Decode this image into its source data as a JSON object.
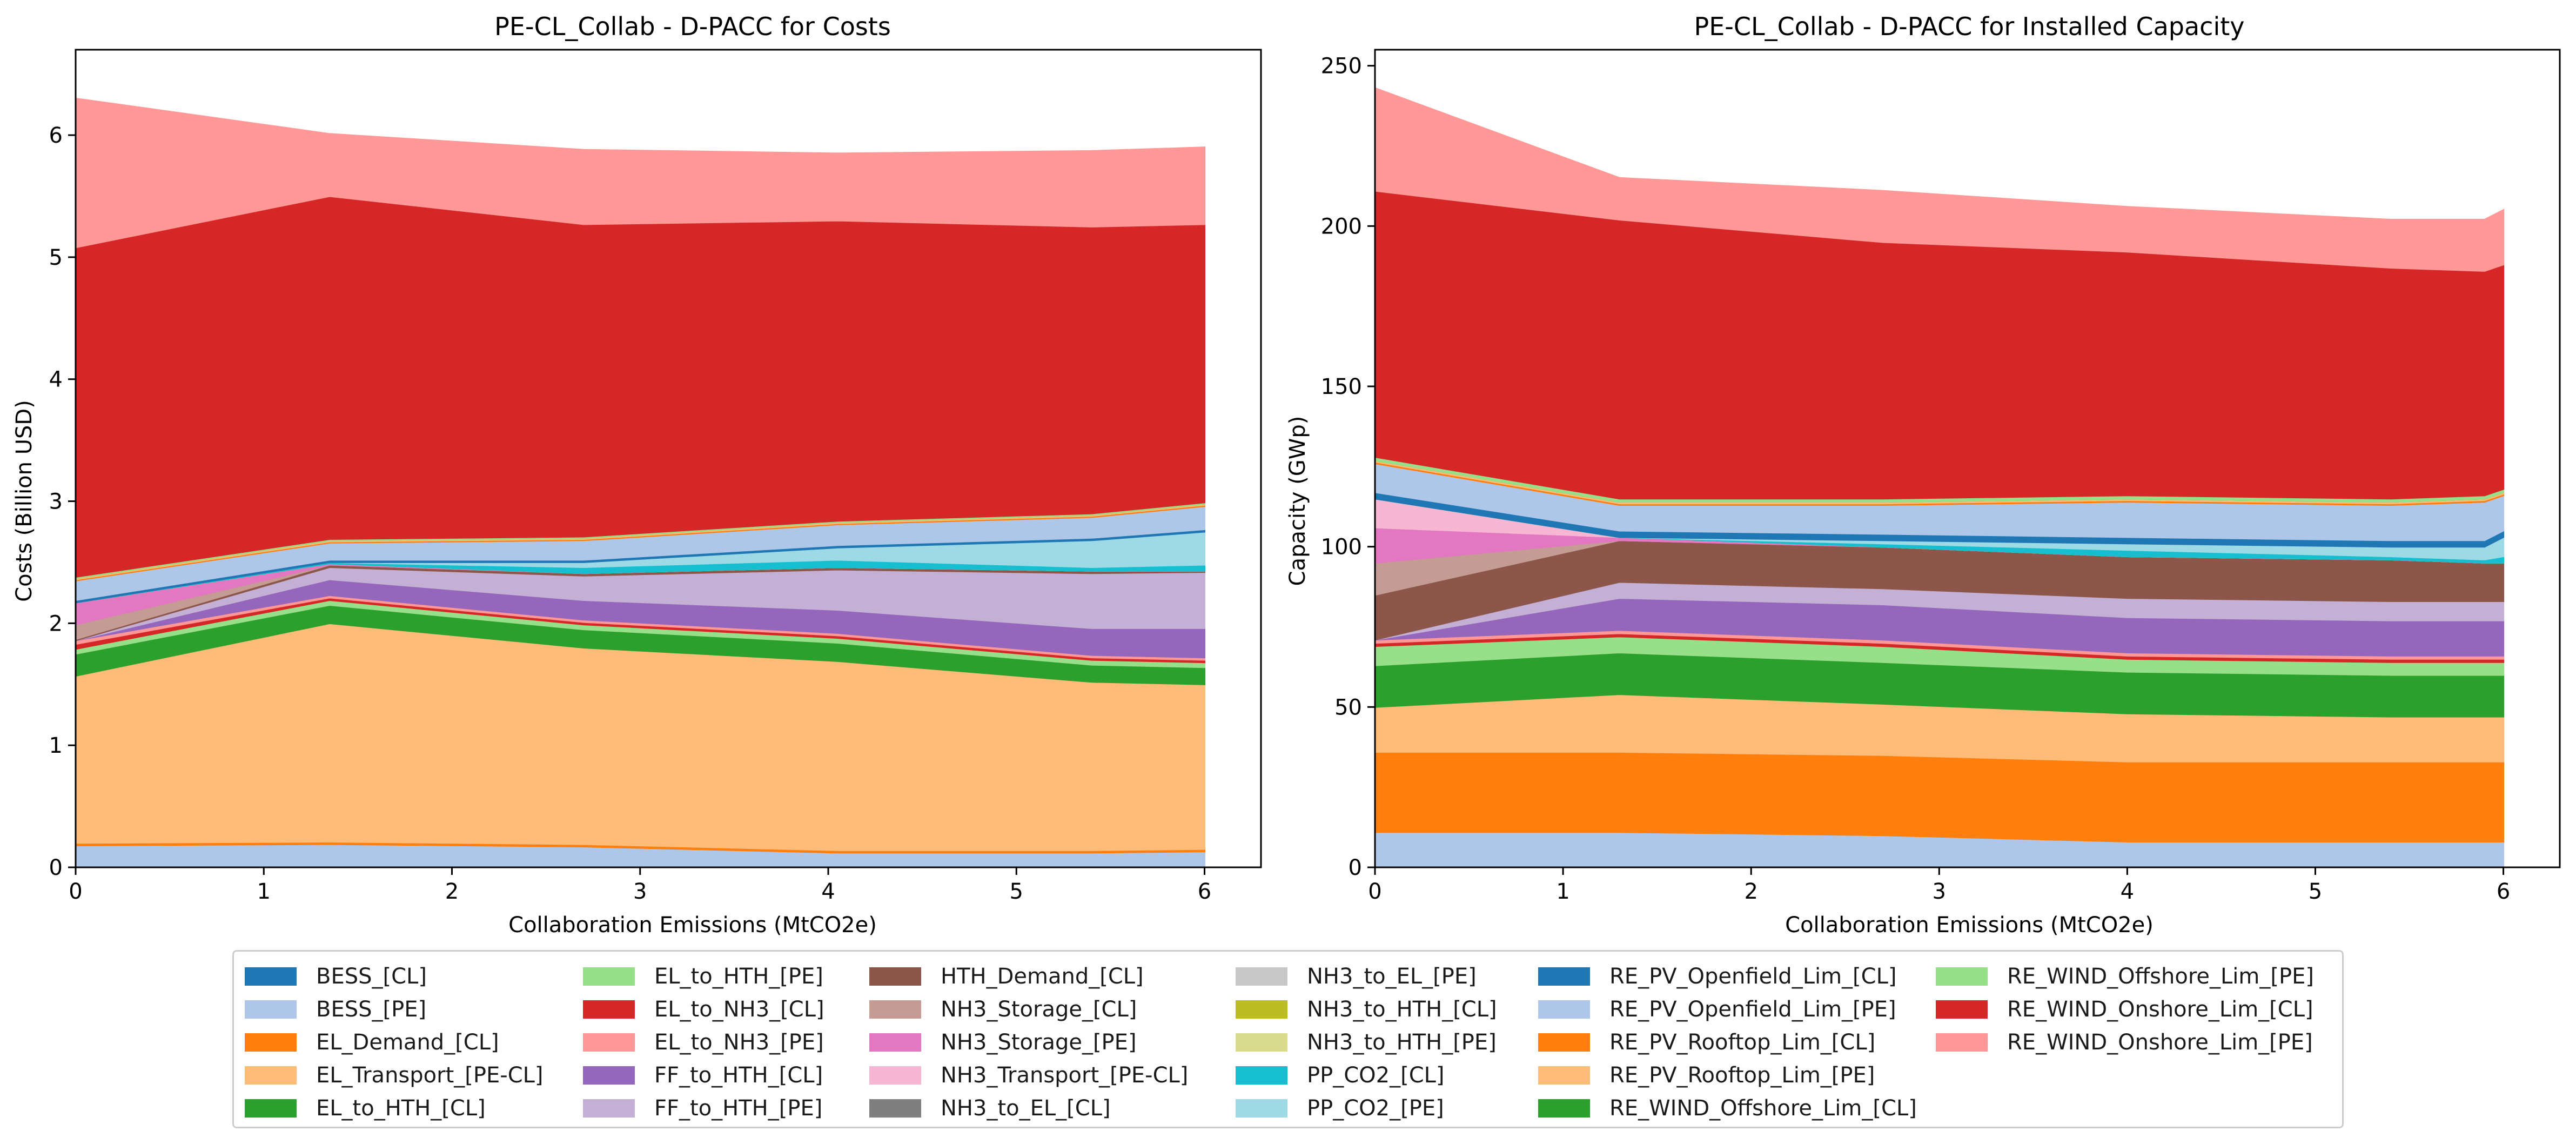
{
  "chart_data": [
    {
      "type": "area",
      "title": "PE-CL_Collab - D-PACC for Costs",
      "xlabel": "Collaboration Emissions (MtCO2e)",
      "ylabel": "Costs (Billion USD)",
      "xlim": [
        0,
        6.3
      ],
      "ylim": [
        0,
        6.7
      ],
      "xticks": [
        0,
        1,
        2,
        3,
        4,
        5,
        6
      ],
      "yticks": [
        0,
        1,
        2,
        3,
        4,
        5,
        6
      ],
      "grid": false,
      "x": [
        0,
        1.35,
        2.7,
        4.05,
        5.4,
        6.0
      ],
      "series": [
        {
          "name": "BESS_[PE]",
          "color": "#aec7e8",
          "values": [
            0.18,
            0.19,
            0.17,
            0.12,
            0.12,
            0.13
          ]
        },
        {
          "name": "EL_Demand_[CL]",
          "color": "#ff7f0e",
          "values": [
            0.02,
            0.02,
            0.02,
            0.02,
            0.02,
            0.02
          ]
        },
        {
          "name": "EL_Transport_[PE-CL]",
          "color": "#ffbb78",
          "values": [
            1.37,
            1.79,
            1.61,
            1.55,
            1.38,
            1.35
          ]
        },
        {
          "name": "EL_to_HTH_[CL]",
          "color": "#2ca02c",
          "values": [
            0.18,
            0.15,
            0.15,
            0.15,
            0.14,
            0.14
          ]
        },
        {
          "name": "EL_to_HTH_[PE]",
          "color": "#98df8a",
          "values": [
            0.04,
            0.04,
            0.04,
            0.04,
            0.04,
            0.04
          ]
        },
        {
          "name": "EL_to_NH3_[CL]",
          "color": "#d62728",
          "values": [
            0.04,
            0.02,
            0.02,
            0.02,
            0.02,
            0.02
          ]
        },
        {
          "name": "EL_to_NH3_[PE]",
          "color": "#ff9896",
          "values": [
            0.03,
            0.02,
            0.02,
            0.02,
            0.02,
            0.02
          ]
        },
        {
          "name": "FF_to_HTH_[CL]",
          "color": "#9467bd",
          "values": [
            0.0,
            0.13,
            0.16,
            0.19,
            0.22,
            0.24
          ]
        },
        {
          "name": "FF_to_HTH_[PE]",
          "color": "#c5b0d5",
          "values": [
            0.0,
            0.1,
            0.2,
            0.33,
            0.45,
            0.46
          ]
        },
        {
          "name": "HTH_Demand_[CL]",
          "color": "#8c564b",
          "values": [
            0.01,
            0.02,
            0.02,
            0.02,
            0.02,
            0.01
          ]
        },
        {
          "name": "NH3_Storage_[CL]",
          "color": "#c49c94",
          "values": [
            0.12,
            0.0,
            0.0,
            0.0,
            0.0,
            0.0
          ]
        },
        {
          "name": "NH3_Storage_[PE]",
          "color": "#e377c2",
          "values": [
            0.18,
            0.01,
            0.0,
            0.0,
            0.0,
            0.0
          ]
        },
        {
          "name": "NH3_Transport_[PE-CL]",
          "color": "#f7b6d2",
          "values": [
            0.0,
            0.0,
            0.0,
            0.0,
            0.0,
            0.0
          ]
        },
        {
          "name": "NH3_to_EL_[CL]",
          "color": "#7f7f7f",
          "values": [
            0.0,
            0.0,
            0.0,
            0.0,
            0.0,
            0.0
          ]
        },
        {
          "name": "NH3_to_EL_[PE]",
          "color": "#c7c7c7",
          "values": [
            0.0,
            0.0,
            0.0,
            0.0,
            0.0,
            0.0
          ]
        },
        {
          "name": "NH3_to_HTH_[CL]",
          "color": "#bcbd22",
          "values": [
            0.0,
            0.0,
            0.0,
            0.0,
            0.0,
            0.0
          ]
        },
        {
          "name": "NH3_to_HTH_[PE]",
          "color": "#dbdb8d",
          "values": [
            0.0,
            0.0,
            0.0,
            0.0,
            0.0,
            0.0
          ]
        },
        {
          "name": "PP_CO2_[CL]",
          "color": "#17becf",
          "values": [
            0.0,
            0.01,
            0.05,
            0.06,
            0.03,
            0.05
          ]
        },
        {
          "name": "PP_CO2_[PE]",
          "color": "#9edae5",
          "values": [
            0.0,
            0.0,
            0.04,
            0.1,
            0.22,
            0.27
          ]
        },
        {
          "name": "RE_PV_Openfield_Lim_[CL]",
          "color": "#1f77b4",
          "values": [
            0.02,
            0.02,
            0.02,
            0.02,
            0.02,
            0.02
          ]
        },
        {
          "name": "RE_PV_Openfield_Lim_[PE]",
          "color": "#aec7e8",
          "values": [
            0.16,
            0.14,
            0.16,
            0.17,
            0.17,
            0.19
          ]
        },
        {
          "name": "RE_PV_Rooftop_Lim_[CL]",
          "color": "#ff7f0e",
          "values": [
            0.01,
            0.01,
            0.01,
            0.01,
            0.01,
            0.01
          ]
        },
        {
          "name": "RE_PV_Rooftop_Lim_[PE]",
          "color": "#ffbb78",
          "values": [
            0.01,
            0.01,
            0.01,
            0.01,
            0.01,
            0.01
          ]
        },
        {
          "name": "RE_WIND_Offshore_Lim_[CL]",
          "color": "#2ca02c",
          "values": [
            0.0,
            0.0,
            0.0,
            0.0,
            0.0,
            0.0
          ]
        },
        {
          "name": "RE_WIND_Offshore_Lim_[PE]",
          "color": "#98df8a",
          "values": [
            0.01,
            0.01,
            0.01,
            0.01,
            0.01,
            0.01
          ]
        },
        {
          "name": "RE_WIND_Onshore_Lim_[CL]",
          "color": "#d62728",
          "values": [
            2.7,
            2.81,
            2.56,
            2.46,
            2.35,
            2.28
          ]
        },
        {
          "name": "RE_WIND_Onshore_Lim_[PE]",
          "color": "#ff9896",
          "values": [
            1.22,
            0.51,
            0.61,
            0.55,
            0.62,
            0.63
          ]
        }
      ]
    },
    {
      "type": "area",
      "title": "PE-CL_Collab - D-PACC for Installed Capacity",
      "xlabel": "Collaboration Emissions (MtCO2e)",
      "ylabel": "Capacity (GWp)",
      "xlim": [
        0,
        6.3
      ],
      "ylim": [
        0,
        255
      ],
      "xticks": [
        0,
        1,
        2,
        3,
        4,
        5,
        6
      ],
      "yticks": [
        0,
        50,
        100,
        150,
        200,
        250
      ],
      "grid": false,
      "x": [
        0,
        1.3,
        2.7,
        4.0,
        5.4,
        5.9,
        6.0
      ],
      "series": [
        {
          "name": "BESS_[PE]",
          "color": "#aec7e8",
          "values": [
            11,
            11,
            10,
            8,
            8,
            8,
            8
          ]
        },
        {
          "name": "EL_Demand_[CL]",
          "color": "#ff7f0e",
          "values": [
            25,
            25,
            25,
            25,
            25,
            25,
            25
          ]
        },
        {
          "name": "EL_Transport_[PE-CL]",
          "color": "#ffbb78",
          "values": [
            14,
            18,
            16,
            15,
            14,
            14,
            14
          ]
        },
        {
          "name": "EL_to_HTH_[CL]",
          "color": "#2ca02c",
          "values": [
            13,
            13,
            13,
            13,
            13,
            13,
            13
          ]
        },
        {
          "name": "EL_to_HTH_[PE]",
          "color": "#98df8a",
          "values": [
            6,
            5,
            5,
            4,
            4,
            4,
            4
          ]
        },
        {
          "name": "EL_to_NH3_[CL]",
          "color": "#d62728",
          "values": [
            1,
            1,
            1,
            1,
            1,
            1,
            1
          ]
        },
        {
          "name": "EL_to_NH3_[PE]",
          "color": "#ff9896",
          "values": [
            1,
            1,
            1,
            1,
            1,
            1,
            1
          ]
        },
        {
          "name": "FF_to_HTH_[CL]",
          "color": "#9467bd",
          "values": [
            0,
            10,
            11,
            11,
            11,
            11,
            11
          ]
        },
        {
          "name": "FF_to_HTH_[PE]",
          "color": "#c5b0d5",
          "values": [
            0,
            5,
            5,
            6,
            6,
            6,
            6
          ]
        },
        {
          "name": "HTH_Demand_[CL]",
          "color": "#8c564b",
          "values": [
            14,
            13,
            13,
            13,
            13,
            12,
            12
          ]
        },
        {
          "name": "NH3_Storage_[CL]",
          "color": "#c49c94",
          "values": [
            10,
            0,
            0,
            0,
            0,
            0,
            0
          ]
        },
        {
          "name": "NH3_Storage_[PE]",
          "color": "#e377c2",
          "values": [
            11,
            1,
            0,
            0,
            0,
            0,
            0
          ]
        },
        {
          "name": "NH3_Transport_[PE-CL]",
          "color": "#f7b6d2",
          "values": [
            9,
            0,
            0,
            0,
            0,
            0,
            0
          ]
        },
        {
          "name": "NH3_to_EL_[CL]",
          "color": "#7f7f7f",
          "values": [
            0,
            0,
            0,
            0,
            0,
            0,
            0
          ]
        },
        {
          "name": "NH3_to_EL_[PE]",
          "color": "#c7c7c7",
          "values": [
            0,
            0,
            0,
            0,
            0,
            0,
            0
          ]
        },
        {
          "name": "NH3_to_HTH_[CL]",
          "color": "#bcbd22",
          "values": [
            0,
            0,
            0,
            0,
            0,
            0,
            0
          ]
        },
        {
          "name": "NH3_to_HTH_[PE]",
          "color": "#dbdb8d",
          "values": [
            0,
            0,
            0,
            0,
            0,
            0,
            0
          ]
        },
        {
          "name": "PP_CO2_[CL]",
          "color": "#17becf",
          "values": [
            0,
            0,
            1,
            2,
            1,
            1,
            2
          ]
        },
        {
          "name": "PP_CO2_[PE]",
          "color": "#9edae5",
          "values": [
            0,
            0,
            1,
            2,
            3,
            4,
            6
          ]
        },
        {
          "name": "RE_PV_Openfield_Lim_[CL]",
          "color": "#1f77b4",
          "values": [
            2,
            2,
            2,
            2,
            2,
            2,
            2
          ]
        },
        {
          "name": "RE_PV_Openfield_Lim_[PE]",
          "color": "#aec7e8",
          "values": [
            9,
            8,
            9,
            11,
            11,
            12,
            11
          ]
        },
        {
          "name": "RE_PV_Rooftop_Lim_[CL]",
          "color": "#ff7f0e",
          "values": [
            0.5,
            0.5,
            0.5,
            0.5,
            0.5,
            0.5,
            0.5
          ]
        },
        {
          "name": "RE_PV_Rooftop_Lim_[PE]",
          "color": "#ffbb78",
          "values": [
            0.5,
            0.5,
            0.5,
            0.5,
            0.5,
            0.5,
            0.5
          ]
        },
        {
          "name": "RE_WIND_Offshore_Lim_[CL]",
          "color": "#2ca02c",
          "values": [
            0,
            0,
            0,
            0,
            0,
            0,
            0
          ]
        },
        {
          "name": "RE_WIND_Offshore_Lim_[PE]",
          "color": "#98df8a",
          "values": [
            1,
            1,
            1,
            1,
            1,
            1,
            1
          ]
        },
        {
          "name": "RE_WIND_Onshore_Lim_[CL]",
          "color": "#d62728",
          "values": [
            83,
            87,
            80,
            76,
            72,
            70,
            70
          ]
        },
        {
          "name": "RE_WIND_Onshore_Lim_[PE]",
          "color": "#ff9896",
          "values": [
            32,
            13,
            16,
            14,
            15,
            16,
            17
          ]
        }
      ]
    }
  ],
  "legend": [
    {
      "label": "BESS_[CL]",
      "color": "#1f77b4"
    },
    {
      "label": "BESS_[PE]",
      "color": "#aec7e8"
    },
    {
      "label": "EL_Demand_[CL]",
      "color": "#ff7f0e"
    },
    {
      "label": "EL_Transport_[PE-CL]",
      "color": "#ffbb78"
    },
    {
      "label": "EL_to_HTH_[CL]",
      "color": "#2ca02c"
    },
    {
      "label": "EL_to_HTH_[PE]",
      "color": "#98df8a"
    },
    {
      "label": "EL_to_NH3_[CL]",
      "color": "#d62728"
    },
    {
      "label": "EL_to_NH3_[PE]",
      "color": "#ff9896"
    },
    {
      "label": "FF_to_HTH_[CL]",
      "color": "#9467bd"
    },
    {
      "label": "FF_to_HTH_[PE]",
      "color": "#c5b0d5"
    },
    {
      "label": "HTH_Demand_[CL]",
      "color": "#8c564b"
    },
    {
      "label": "NH3_Storage_[CL]",
      "color": "#c49c94"
    },
    {
      "label": "NH3_Storage_[PE]",
      "color": "#e377c2"
    },
    {
      "label": "NH3_Transport_[PE-CL]",
      "color": "#f7b6d2"
    },
    {
      "label": "NH3_to_EL_[CL]",
      "color": "#7f7f7f"
    },
    {
      "label": "NH3_to_EL_[PE]",
      "color": "#c7c7c7"
    },
    {
      "label": "NH3_to_HTH_[CL]",
      "color": "#bcbd22"
    },
    {
      "label": "NH3_to_HTH_[PE]",
      "color": "#dbdb8d"
    },
    {
      "label": "PP_CO2_[CL]",
      "color": "#17becf"
    },
    {
      "label": "PP_CO2_[PE]",
      "color": "#9edae5"
    },
    {
      "label": "RE_PV_Openfield_Lim_[CL]",
      "color": "#1f77b4"
    },
    {
      "label": "RE_PV_Openfield_Lim_[PE]",
      "color": "#aec7e8"
    },
    {
      "label": "RE_PV_Rooftop_Lim_[CL]",
      "color": "#ff7f0e"
    },
    {
      "label": "RE_PV_Rooftop_Lim_[PE]",
      "color": "#ffbb78"
    },
    {
      "label": "RE_WIND_Offshore_Lim_[CL]",
      "color": "#2ca02c"
    },
    {
      "label": "RE_WIND_Offshore_Lim_[PE]",
      "color": "#98df8a"
    },
    {
      "label": "RE_WIND_Onshore_Lim_[CL]",
      "color": "#d62728"
    },
    {
      "label": "RE_WIND_Onshore_Lim_[PE]",
      "color": "#ff9896"
    }
  ]
}
